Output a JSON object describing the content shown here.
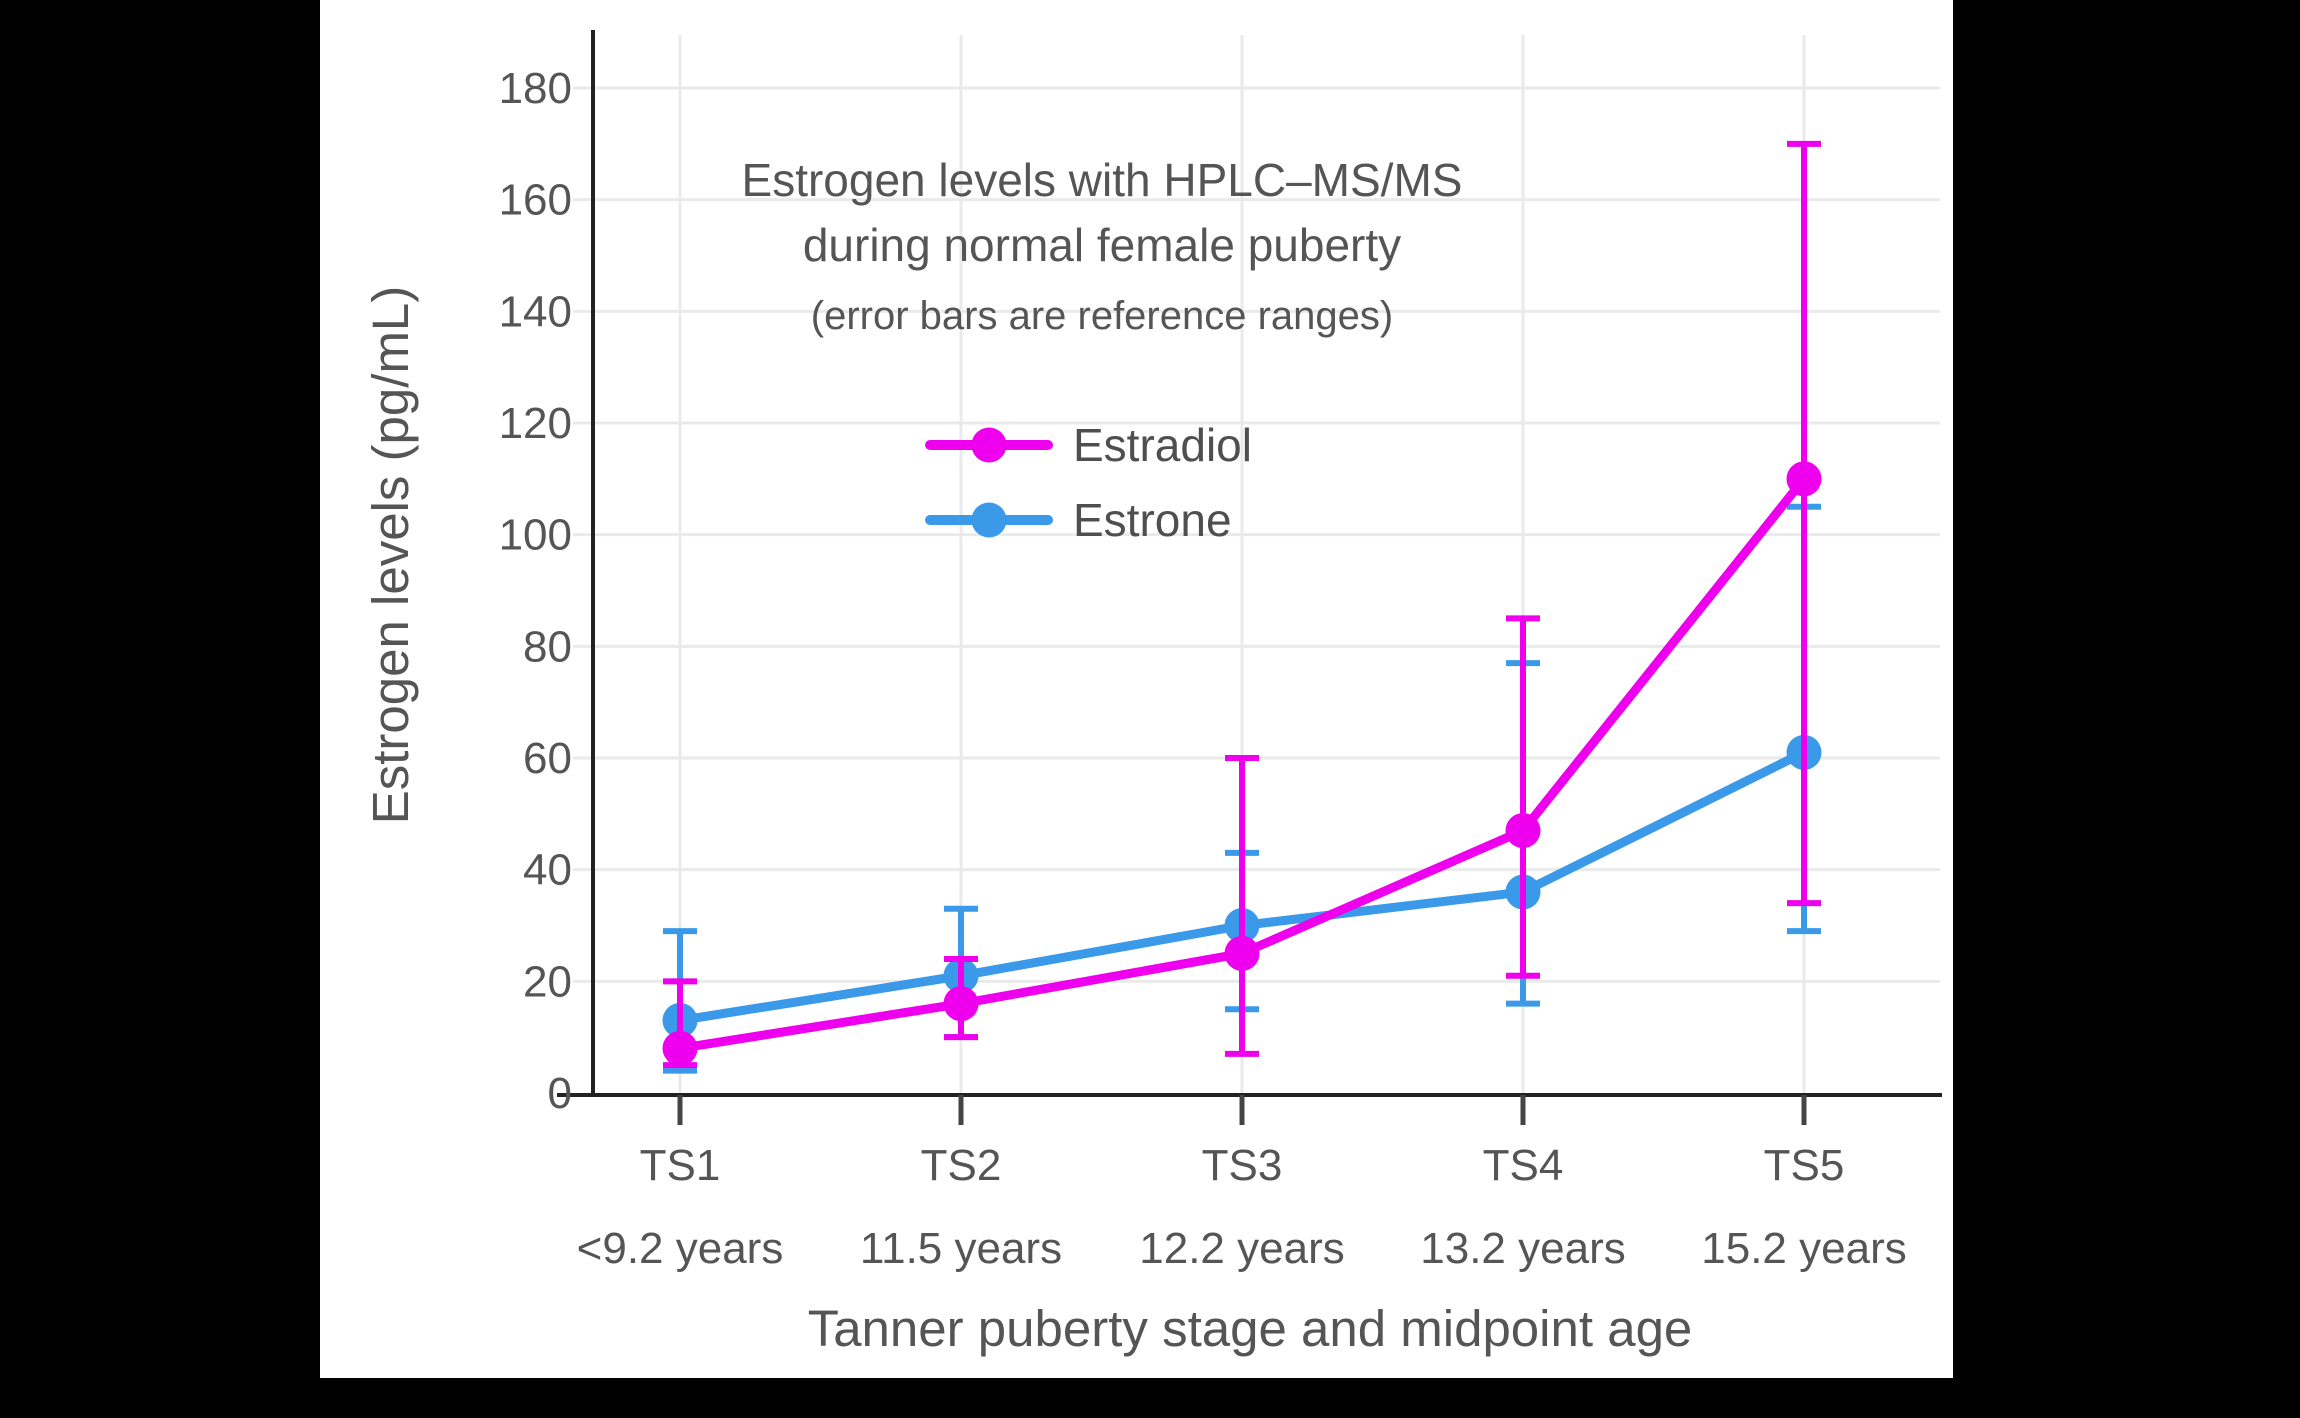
{
  "chart_data": {
    "type": "line",
    "title_line1": "Estrogen levels with HPLC–MS/MS",
    "title_line2": "during normal female puberty",
    "note": "(error bars are reference ranges)",
    "xlabel": "Tanner puberty stage and midpoint age",
    "ylabel": "Estrogen levels (pg/mL)",
    "categories": [
      "TS1",
      "TS2",
      "TS3",
      "TS4",
      "TS5"
    ],
    "category_sublabels": [
      "<9.2 years",
      "11.5 years",
      "12.2 years",
      "13.2 years",
      "15.2 years"
    ],
    "yticks": [
      0,
      20,
      40,
      60,
      80,
      100,
      120,
      140,
      160,
      180
    ],
    "ylim": [
      0,
      187
    ],
    "grid": true,
    "legend_position": "inside-upper-center",
    "error_bar_meaning": "reference ranges",
    "series": [
      {
        "name": "Estradiol",
        "color": "#ee00ee",
        "values": [
          8,
          16,
          25,
          47,
          110
        ],
        "error_low": [
          5,
          10,
          7,
          21,
          34
        ],
        "error_high": [
          20,
          24,
          60,
          85,
          170
        ]
      },
      {
        "name": "Estrone",
        "color": "#3a99e8",
        "values": [
          13,
          21,
          30,
          36,
          61
        ],
        "error_low": [
          4,
          10,
          15,
          16,
          29
        ],
        "error_high": [
          29,
          33,
          43,
          77,
          105
        ]
      }
    ]
  }
}
